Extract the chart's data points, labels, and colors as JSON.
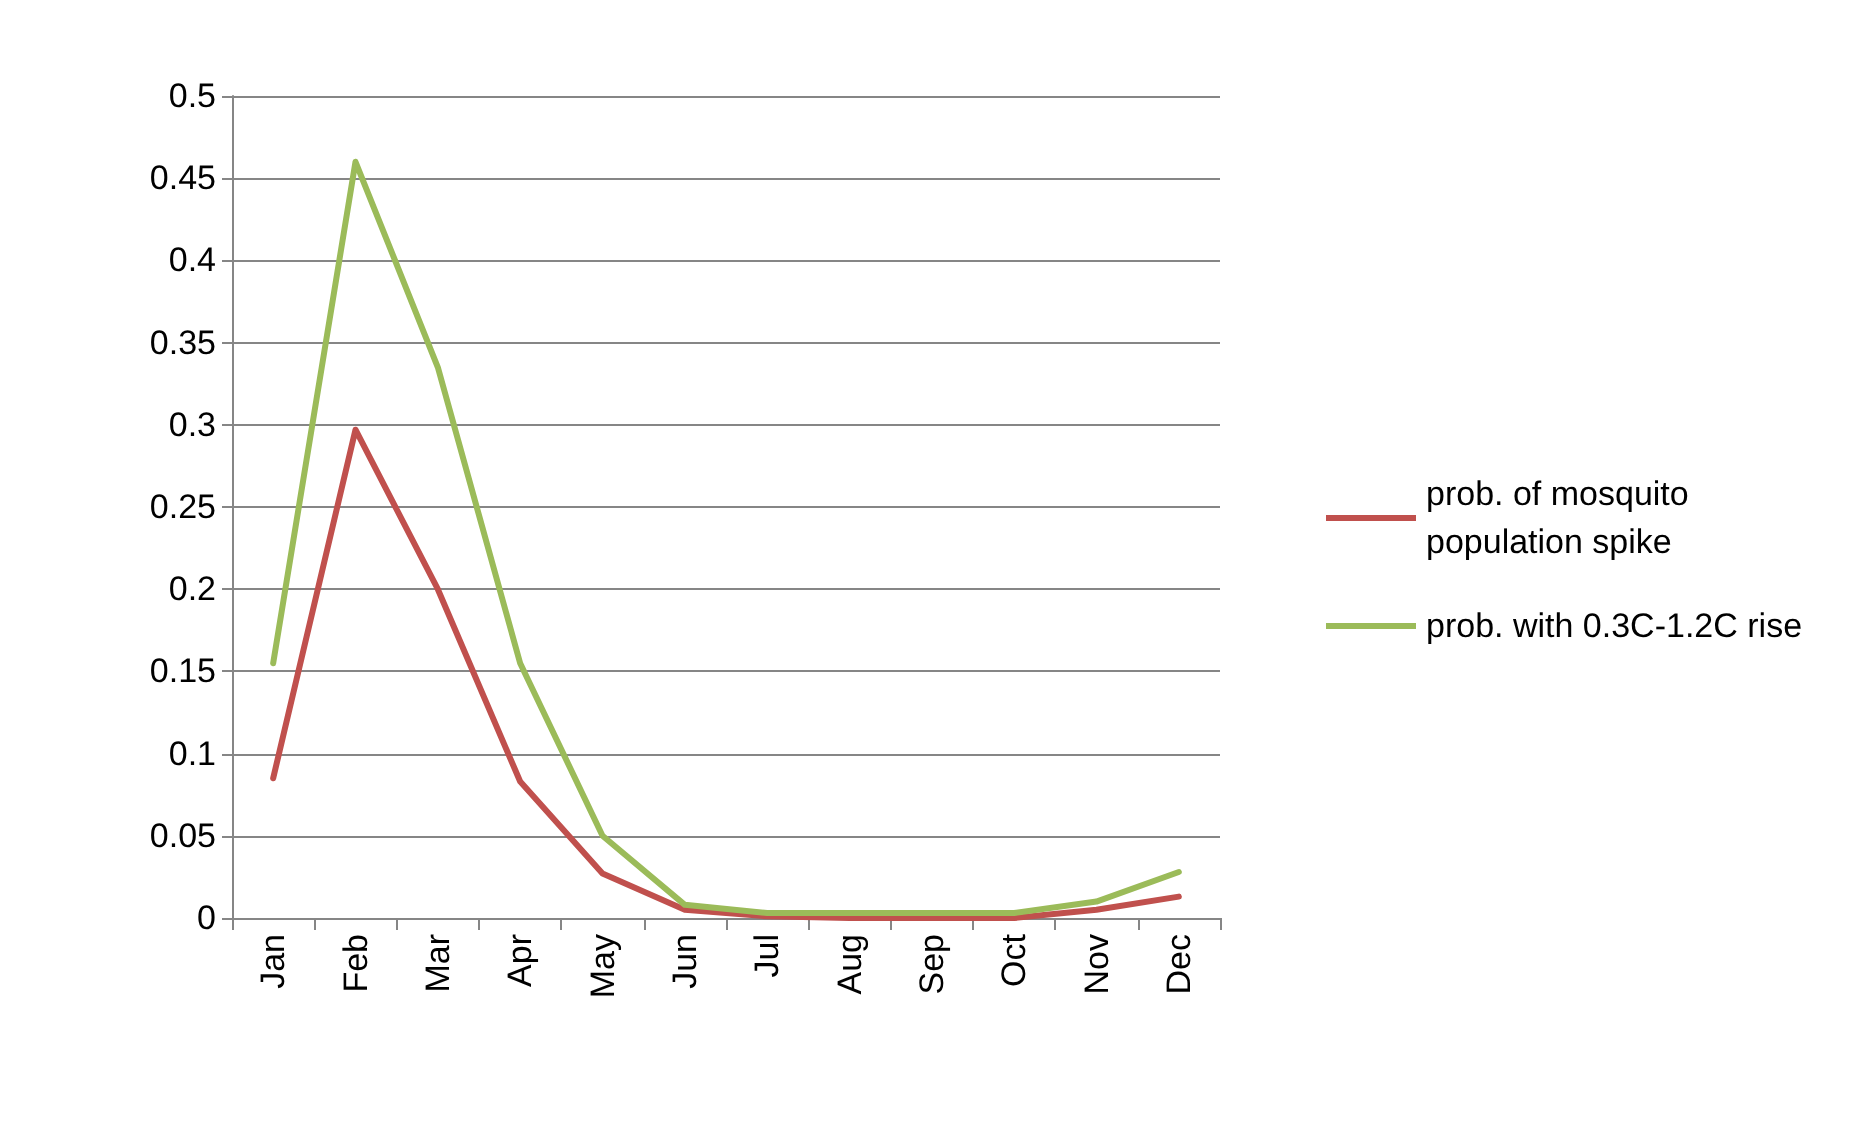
{
  "chart_data": {
    "type": "line",
    "categories": [
      "Jan",
      "Feb",
      "Mar",
      "Apr",
      "May",
      "Jun",
      "Jul",
      "Aug",
      "Sep",
      "Oct",
      "Nov",
      "Dec"
    ],
    "series": [
      {
        "name": "prob. of mosquito population spike",
        "color": "#c0504d",
        "values": [
          0.085,
          0.297,
          0.2,
          0.083,
          0.027,
          0.005,
          0.001,
          0,
          0,
          0,
          0.005,
          0.013
        ]
      },
      {
        "name": "prob. with 0.3C-1.2C rise",
        "color": "#9bbb59",
        "values": [
          0.155,
          0.46,
          0.335,
          0.155,
          0.05,
          0.008,
          0.003,
          0.003,
          0.003,
          0.003,
          0.01,
          0.028
        ]
      }
    ],
    "ylim": [
      0,
      0.5
    ],
    "yticks": [
      0,
      0.05,
      0.1,
      0.15,
      0.2,
      0.25,
      0.3,
      0.35,
      0.4,
      0.45,
      0.5
    ],
    "grid": "y",
    "legend": "right",
    "marker": "none",
    "line_style": "solid"
  }
}
